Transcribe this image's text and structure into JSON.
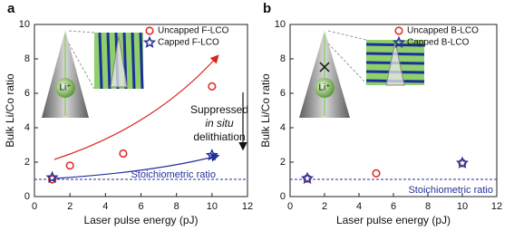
{
  "chart_data": [
    {
      "type": "scatter",
      "panel_label": "a",
      "xlabel": "Laser pulse energy (pJ)",
      "ylabel": "Bulk Li/Co ratio",
      "xlim": [
        0,
        12
      ],
      "ylim": [
        0,
        10
      ],
      "xticks": [
        0,
        2,
        4,
        6,
        8,
        10,
        12
      ],
      "yticks": [
        0,
        2,
        4,
        6,
        8,
        10
      ],
      "legend": "upper right",
      "series": [
        {
          "name": "Uncapped F-LCO",
          "color": "#e0302a",
          "marker": "circle",
          "x": [
            1,
            2,
            5,
            10
          ],
          "values": [
            1.0,
            1.8,
            2.5,
            6.4
          ]
        },
        {
          "name": "Capped F-LCO",
          "color": "#24309a",
          "marker": "star",
          "x": [
            1,
            10
          ],
          "values": [
            1.1,
            2.4
          ]
        }
      ],
      "reference_line": {
        "value": 1,
        "label": "Stoichiometric ratio",
        "color": "#24309a"
      },
      "annotations": [
        "Suppressed",
        "in situ",
        "delithiation"
      ],
      "inset_label": "Li⁺"
    },
    {
      "type": "scatter",
      "panel_label": "b",
      "xlabel": "Laser pulse energy (pJ)",
      "ylabel": "Bulk Li/Co ratio",
      "xlim": [
        0,
        12
      ],
      "ylim": [
        0,
        10
      ],
      "xticks": [
        0,
        2,
        4,
        6,
        8,
        10,
        12
      ],
      "yticks": [
        0,
        2,
        4,
        6,
        8,
        10
      ],
      "legend": "upper right",
      "series": [
        {
          "name": "Uncapped B-LCO",
          "color": "#e0302a",
          "marker": "circle",
          "x": [
            1,
            5,
            10
          ],
          "values": [
            1.05,
            1.35,
            1.95
          ]
        },
        {
          "name": "Capped B-LCO",
          "color": "#24309a",
          "marker": "star",
          "x": [
            1,
            10
          ],
          "values": [
            1.05,
            1.95
          ]
        }
      ],
      "reference_line": {
        "value": 1,
        "label": "Stoichiometric ratio",
        "color": "#24309a"
      },
      "inset_label": "Li⁺"
    }
  ]
}
